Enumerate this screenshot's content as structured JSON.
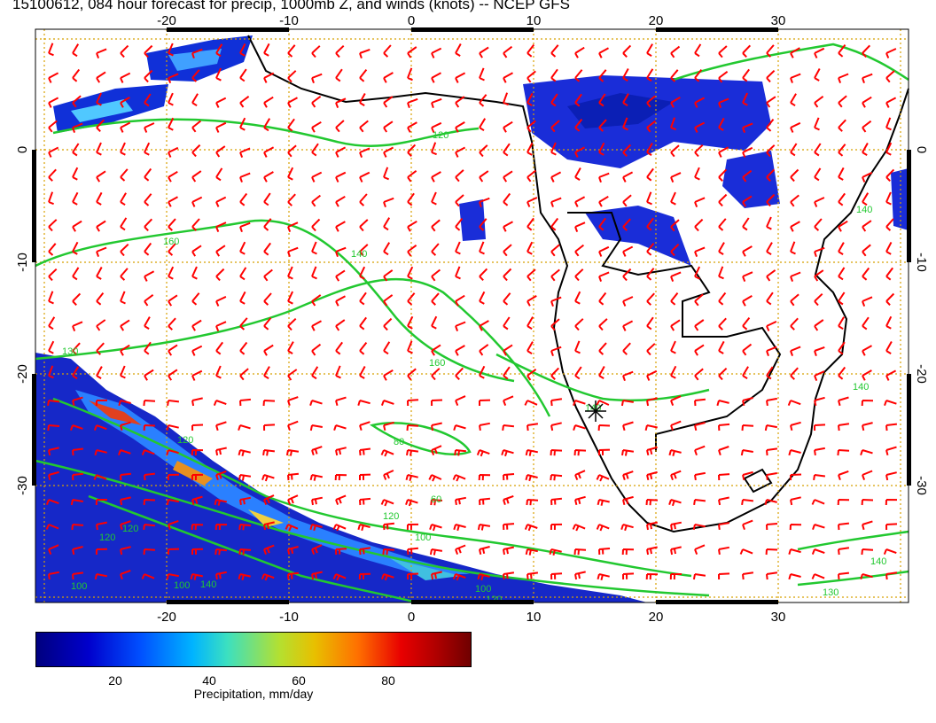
{
  "title": "15100612, 084 hour forecast for precip, 1000mb Z, and winds (knots) -- NCEP GFS",
  "map": {
    "lon_ticks": [
      "-20",
      "-10",
      "0",
      "10",
      "20",
      "30"
    ],
    "lat_ticks": [
      "0",
      "-10",
      "-20",
      "-30"
    ],
    "contour_labels": [
      "120",
      "160",
      "140",
      "130",
      "160",
      "80",
      "120",
      "120",
      "60",
      "100",
      "120",
      "120",
      "100",
      "140",
      "140",
      "140",
      "140",
      "130",
      "100",
      "120",
      "100",
      "140"
    ],
    "colors": {
      "wind_barbs": "#ff0000",
      "contours": "#22c830",
      "coastlines": "#000000",
      "gridlines": "#d8a000"
    },
    "marker_icon": "star-burst-icon"
  },
  "colorbar": {
    "ticks": [
      "20",
      "40",
      "60",
      "80"
    ],
    "label": "Precipitation, mm/day"
  }
}
